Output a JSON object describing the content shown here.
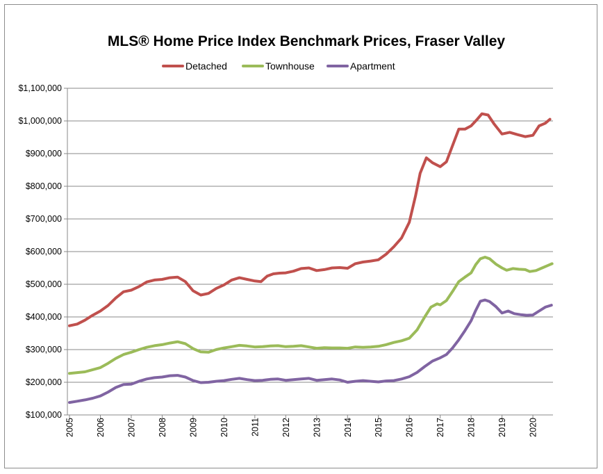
{
  "chart_data": {
    "type": "line",
    "title": "MLS® Home Price Index Benchmark Prices, Fraser Valley",
    "xlabel": "",
    "ylabel": "",
    "xlim": [
      2005.0,
      2020.65
    ],
    "ylim": [
      100000,
      1100000
    ],
    "y_ticks": [
      100000,
      200000,
      300000,
      400000,
      500000,
      600000,
      700000,
      800000,
      900000,
      1000000,
      1100000
    ],
    "y_tick_labels": [
      "$100,000",
      "$200,000",
      "$300,000",
      "$400,000",
      "$500,000",
      "$600,000",
      "$700,000",
      "$800,000",
      "$900,000",
      "$1,000,000",
      "$1,100,000"
    ],
    "x_tick_labels": [
      "2005",
      "2006",
      "2007",
      "2008",
      "2009",
      "2010",
      "2011",
      "2012",
      "2013",
      "2014",
      "2015",
      "2016",
      "2017",
      "2018",
      "2019",
      "2020"
    ],
    "grid": "horizontal",
    "legend_position": "top",
    "series": [
      {
        "name": "Detached",
        "color": "#C0504D",
        "points": [
          [
            2005.0,
            373000
          ],
          [
            2005.25,
            378000
          ],
          [
            2005.5,
            390000
          ],
          [
            2005.75,
            405000
          ],
          [
            2006.0,
            418000
          ],
          [
            2006.25,
            435000
          ],
          [
            2006.5,
            458000
          ],
          [
            2006.75,
            477000
          ],
          [
            2007.0,
            482000
          ],
          [
            2007.25,
            493000
          ],
          [
            2007.5,
            507000
          ],
          [
            2007.75,
            513000
          ],
          [
            2008.0,
            515000
          ],
          [
            2008.25,
            520000
          ],
          [
            2008.5,
            522000
          ],
          [
            2008.75,
            508000
          ],
          [
            2009.0,
            480000
          ],
          [
            2009.25,
            467000
          ],
          [
            2009.5,
            472000
          ],
          [
            2009.75,
            487000
          ],
          [
            2010.0,
            498000
          ],
          [
            2010.25,
            513000
          ],
          [
            2010.5,
            520000
          ],
          [
            2010.75,
            515000
          ],
          [
            2011.0,
            510000
          ],
          [
            2011.2,
            508000
          ],
          [
            2011.4,
            525000
          ],
          [
            2011.6,
            532000
          ],
          [
            2011.8,
            534000
          ],
          [
            2012.0,
            535000
          ],
          [
            2012.25,
            540000
          ],
          [
            2012.5,
            548000
          ],
          [
            2012.75,
            550000
          ],
          [
            2013.0,
            542000
          ],
          [
            2013.25,
            545000
          ],
          [
            2013.5,
            550000
          ],
          [
            2013.75,
            551000
          ],
          [
            2014.0,
            549000
          ],
          [
            2014.25,
            563000
          ],
          [
            2014.5,
            568000
          ],
          [
            2014.75,
            571000
          ],
          [
            2015.0,
            575000
          ],
          [
            2015.25,
            592000
          ],
          [
            2015.5,
            615000
          ],
          [
            2015.75,
            642000
          ],
          [
            2016.0,
            690000
          ],
          [
            2016.2,
            770000
          ],
          [
            2016.35,
            840000
          ],
          [
            2016.55,
            887000
          ],
          [
            2016.75,
            872000
          ],
          [
            2017.0,
            860000
          ],
          [
            2017.2,
            875000
          ],
          [
            2017.4,
            925000
          ],
          [
            2017.6,
            975000
          ],
          [
            2017.8,
            975000
          ],
          [
            2018.0,
            985000
          ],
          [
            2018.2,
            1005000
          ],
          [
            2018.35,
            1022000
          ],
          [
            2018.55,
            1018000
          ],
          [
            2018.75,
            990000
          ],
          [
            2019.0,
            960000
          ],
          [
            2019.25,
            965000
          ],
          [
            2019.5,
            958000
          ],
          [
            2019.75,
            952000
          ],
          [
            2020.0,
            956000
          ],
          [
            2020.2,
            985000
          ],
          [
            2020.4,
            993000
          ],
          [
            2020.55,
            1005000
          ]
        ]
      },
      {
        "name": "Townhouse",
        "color": "#9BBB59",
        "points": [
          [
            2005.0,
            227000
          ],
          [
            2005.5,
            232000
          ],
          [
            2006.0,
            245000
          ],
          [
            2006.25,
            258000
          ],
          [
            2006.5,
            273000
          ],
          [
            2006.75,
            285000
          ],
          [
            2007.0,
            292000
          ],
          [
            2007.25,
            300000
          ],
          [
            2007.5,
            307000
          ],
          [
            2007.75,
            312000
          ],
          [
            2008.0,
            315000
          ],
          [
            2008.25,
            320000
          ],
          [
            2008.5,
            324000
          ],
          [
            2008.75,
            318000
          ],
          [
            2009.0,
            303000
          ],
          [
            2009.25,
            293000
          ],
          [
            2009.5,
            292000
          ],
          [
            2009.75,
            300000
          ],
          [
            2010.0,
            305000
          ],
          [
            2010.25,
            309000
          ],
          [
            2010.5,
            313000
          ],
          [
            2010.75,
            311000
          ],
          [
            2011.0,
            308000
          ],
          [
            2011.25,
            309000
          ],
          [
            2011.5,
            311000
          ],
          [
            2011.75,
            312000
          ],
          [
            2012.0,
            309000
          ],
          [
            2012.25,
            310000
          ],
          [
            2012.5,
            312000
          ],
          [
            2012.75,
            308000
          ],
          [
            2013.0,
            304000
          ],
          [
            2013.25,
            306000
          ],
          [
            2013.5,
            305000
          ],
          [
            2013.75,
            305000
          ],
          [
            2014.0,
            304000
          ],
          [
            2014.25,
            308000
          ],
          [
            2014.5,
            307000
          ],
          [
            2014.75,
            308000
          ],
          [
            2015.0,
            310000
          ],
          [
            2015.25,
            315000
          ],
          [
            2015.5,
            322000
          ],
          [
            2015.75,
            327000
          ],
          [
            2016.0,
            335000
          ],
          [
            2016.25,
            360000
          ],
          [
            2016.5,
            400000
          ],
          [
            2016.7,
            430000
          ],
          [
            2016.9,
            440000
          ],
          [
            2017.0,
            437000
          ],
          [
            2017.2,
            450000
          ],
          [
            2017.4,
            478000
          ],
          [
            2017.6,
            508000
          ],
          [
            2017.8,
            522000
          ],
          [
            2018.0,
            535000
          ],
          [
            2018.15,
            560000
          ],
          [
            2018.3,
            578000
          ],
          [
            2018.45,
            583000
          ],
          [
            2018.6,
            578000
          ],
          [
            2018.8,
            562000
          ],
          [
            2019.0,
            550000
          ],
          [
            2019.15,
            543000
          ],
          [
            2019.35,
            548000
          ],
          [
            2019.55,
            546000
          ],
          [
            2019.75,
            545000
          ],
          [
            2019.9,
            539000
          ],
          [
            2020.1,
            542000
          ],
          [
            2020.3,
            550000
          ],
          [
            2020.5,
            558000
          ],
          [
            2020.62,
            563000
          ]
        ]
      },
      {
        "name": "Apartment",
        "color": "#8064A2",
        "points": [
          [
            2005.0,
            138000
          ],
          [
            2005.25,
            142000
          ],
          [
            2005.5,
            146000
          ],
          [
            2005.75,
            151000
          ],
          [
            2006.0,
            158000
          ],
          [
            2006.25,
            170000
          ],
          [
            2006.5,
            184000
          ],
          [
            2006.75,
            193000
          ],
          [
            2007.0,
            194000
          ],
          [
            2007.25,
            203000
          ],
          [
            2007.5,
            210000
          ],
          [
            2007.75,
            214000
          ],
          [
            2008.0,
            216000
          ],
          [
            2008.25,
            220000
          ],
          [
            2008.5,
            221000
          ],
          [
            2008.75,
            216000
          ],
          [
            2009.0,
            205000
          ],
          [
            2009.25,
            199000
          ],
          [
            2009.5,
            200000
          ],
          [
            2009.75,
            203000
          ],
          [
            2010.0,
            205000
          ],
          [
            2010.25,
            209000
          ],
          [
            2010.5,
            212000
          ],
          [
            2010.75,
            208000
          ],
          [
            2011.0,
            205000
          ],
          [
            2011.25,
            206000
          ],
          [
            2011.5,
            209000
          ],
          [
            2011.75,
            210000
          ],
          [
            2012.0,
            206000
          ],
          [
            2012.25,
            208000
          ],
          [
            2012.5,
            210000
          ],
          [
            2012.75,
            212000
          ],
          [
            2013.0,
            206000
          ],
          [
            2013.25,
            208000
          ],
          [
            2013.5,
            210000
          ],
          [
            2013.75,
            207000
          ],
          [
            2014.0,
            200000
          ],
          [
            2014.25,
            203000
          ],
          [
            2014.5,
            205000
          ],
          [
            2014.75,
            203000
          ],
          [
            2015.0,
            201000
          ],
          [
            2015.25,
            204000
          ],
          [
            2015.5,
            205000
          ],
          [
            2015.75,
            210000
          ],
          [
            2016.0,
            217000
          ],
          [
            2016.25,
            230000
          ],
          [
            2016.5,
            248000
          ],
          [
            2016.75,
            265000
          ],
          [
            2017.0,
            275000
          ],
          [
            2017.2,
            285000
          ],
          [
            2017.4,
            305000
          ],
          [
            2017.6,
            330000
          ],
          [
            2017.8,
            358000
          ],
          [
            2018.0,
            388000
          ],
          [
            2018.15,
            420000
          ],
          [
            2018.3,
            448000
          ],
          [
            2018.45,
            452000
          ],
          [
            2018.6,
            447000
          ],
          [
            2018.8,
            432000
          ],
          [
            2019.0,
            412000
          ],
          [
            2019.2,
            418000
          ],
          [
            2019.4,
            410000
          ],
          [
            2019.6,
            407000
          ],
          [
            2019.8,
            405000
          ],
          [
            2020.0,
            406000
          ],
          [
            2020.2,
            418000
          ],
          [
            2020.4,
            430000
          ],
          [
            2020.6,
            436000
          ]
        ]
      }
    ]
  }
}
